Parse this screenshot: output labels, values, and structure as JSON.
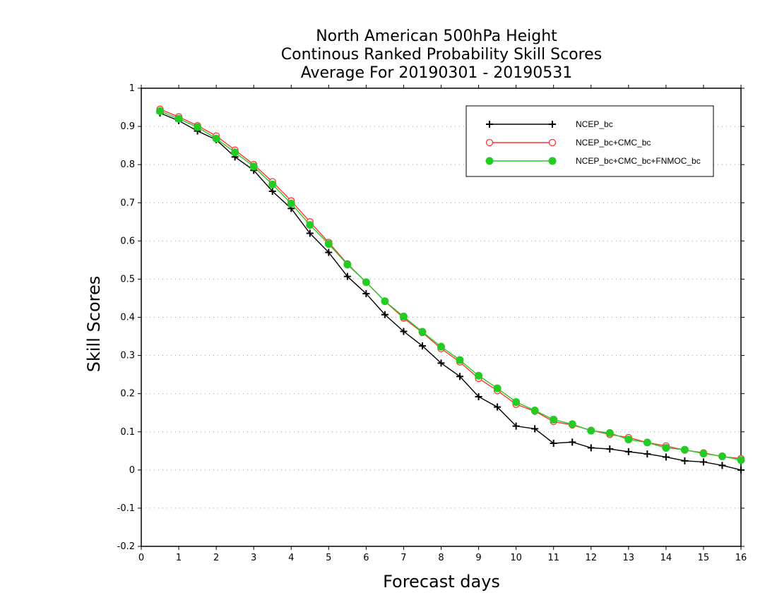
{
  "chart_data": {
    "type": "line",
    "title_lines": [
      "North American 500hPa Height",
      "Continous Ranked Probability Skill Scores",
      "Average For 20190301 - 20190531"
    ],
    "xlabel": "Forecast days",
    "ylabel": "Skill Scores",
    "xlim": [
      0,
      16
    ],
    "ylim": [
      -0.2,
      1
    ],
    "x_ticks": [
      "0",
      "1",
      "2",
      "3",
      "4",
      "5",
      "6",
      "7",
      "8",
      "9",
      "10",
      "11",
      "12",
      "13",
      "14",
      "15",
      "16"
    ],
    "y_ticks": [
      "-0.2",
      "-0.1",
      "0",
      "0.1",
      "0.2",
      "0.3",
      "0.4",
      "0.5",
      "0.6",
      "0.7",
      "0.8",
      "0.9",
      "1"
    ],
    "grid": "horizontal dotted",
    "legend_position": "top-right",
    "x": [
      0.5,
      1,
      1.5,
      2,
      2.5,
      3,
      3.5,
      4,
      4.5,
      5,
      5.5,
      6,
      6.5,
      7,
      7.5,
      8,
      8.5,
      9,
      9.5,
      10,
      10.5,
      11,
      11.5,
      12,
      12.5,
      13,
      13.5,
      14,
      14.5,
      15,
      15.5,
      16
    ],
    "series": [
      {
        "name": "NCEP_bc",
        "color": "#000000",
        "marker": "plus",
        "values": [
          0.935,
          0.915,
          0.888,
          0.865,
          0.82,
          0.785,
          0.73,
          0.685,
          0.62,
          0.57,
          0.507,
          0.462,
          0.407,
          0.363,
          0.325,
          0.28,
          0.245,
          0.192,
          0.165,
          0.115,
          0.108,
          0.07,
          0.073,
          0.058,
          0.055,
          0.048,
          0.042,
          0.034,
          0.024,
          0.021,
          0.012,
          0.0
        ]
      },
      {
        "name": "NCEP_bc+CMC_bc",
        "color": "#ff3333",
        "marker": "open-circle",
        "values": [
          0.945,
          0.925,
          0.902,
          0.875,
          0.838,
          0.8,
          0.755,
          0.705,
          0.65,
          0.596,
          0.54,
          0.492,
          0.442,
          0.398,
          0.36,
          0.318,
          0.283,
          0.24,
          0.208,
          0.172,
          0.154,
          0.127,
          0.118,
          0.104,
          0.093,
          0.085,
          0.072,
          0.063,
          0.052,
          0.045,
          0.035,
          0.03
        ]
      },
      {
        "name": "NCEP_bc+CMC_bc+FNMOC_bc",
        "color": "#22cc22",
        "marker": "filled-circle",
        "values": [
          0.94,
          0.92,
          0.898,
          0.868,
          0.832,
          0.795,
          0.748,
          0.698,
          0.642,
          0.592,
          0.538,
          0.492,
          0.442,
          0.402,
          0.362,
          0.323,
          0.288,
          0.247,
          0.214,
          0.178,
          0.156,
          0.132,
          0.12,
          0.103,
          0.097,
          0.08,
          0.072,
          0.058,
          0.053,
          0.043,
          0.036,
          0.026
        ]
      }
    ]
  }
}
